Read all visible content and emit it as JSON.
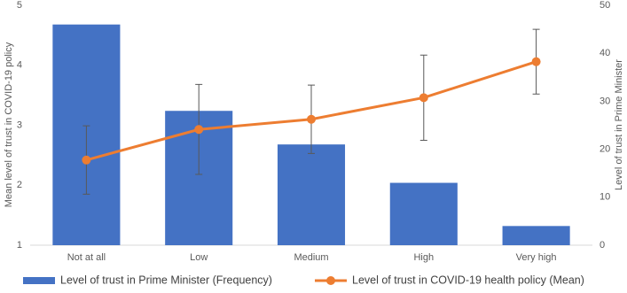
{
  "chart_data": {
    "type": "bar-line",
    "categories": [
      "Not at all",
      "Low",
      "Medium",
      "High",
      "Very high"
    ],
    "y_label": "Mean level of trust in COVID-19 policy",
    "y2_label": "Level of trust in Prime Minister",
    "ylim": [
      1,
      5
    ],
    "yticks": [
      1,
      2,
      3,
      4,
      5
    ],
    "y2lim": [
      0,
      50
    ],
    "y2ticks": [
      0,
      10,
      20,
      30,
      40,
      50
    ],
    "series": [
      {
        "name": "Level of trust in Prime Minister (Frequency)",
        "type": "bar",
        "axis": "y2",
        "color": "#4472c4",
        "values": [
          46,
          28,
          21,
          13,
          4
        ]
      },
      {
        "name": "Level of trust in COVID-19 health policy (Mean)",
        "type": "line",
        "axis": "y",
        "color": "#ed7d31",
        "values": [
          2.42,
          2.93,
          3.1,
          3.46,
          4.06
        ],
        "error": [
          0.57,
          0.75,
          0.57,
          0.71,
          0.54
        ]
      }
    ]
  }
}
